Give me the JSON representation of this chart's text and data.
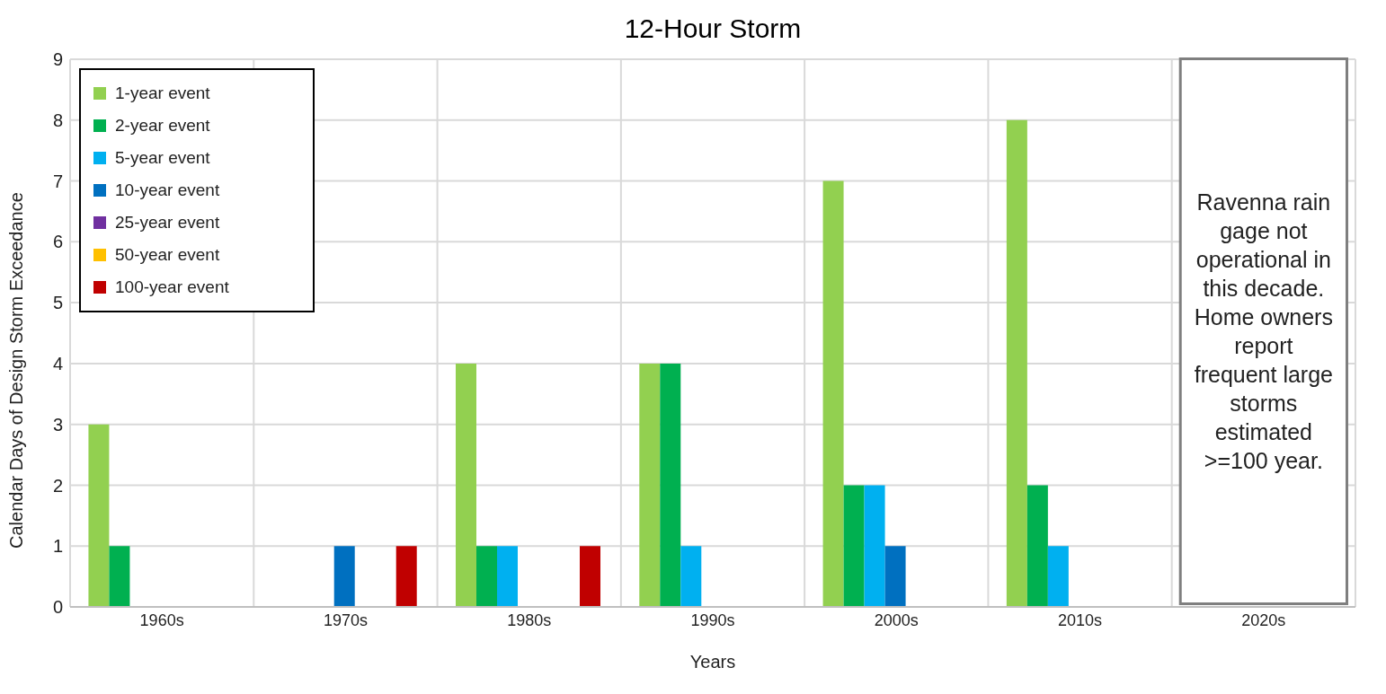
{
  "chart_data": {
    "type": "bar",
    "title": "12-Hour Storm",
    "xlabel": "Years",
    "ylabel": "Calendar Days of Design Storm Exceedance",
    "categories": [
      "1960s",
      "1970s",
      "1980s",
      "1990s",
      "2000s",
      "2010s",
      "2020s"
    ],
    "series": [
      {
        "name": "1-year event",
        "color": "#92d050",
        "values": [
          3,
          0,
          4,
          4,
          7,
          8,
          null
        ]
      },
      {
        "name": "2-year event",
        "color": "#00b050",
        "values": [
          1,
          0,
          1,
          4,
          2,
          2,
          null
        ]
      },
      {
        "name": "5-year event",
        "color": "#00b0f0",
        "values": [
          0,
          0,
          1,
          1,
          2,
          1,
          null
        ]
      },
      {
        "name": "10-year event",
        "color": "#0070c0",
        "values": [
          0,
          1,
          0,
          0,
          1,
          0,
          null
        ]
      },
      {
        "name": "25-year event",
        "color": "#7030a0",
        "values": [
          0,
          0,
          0,
          0,
          0,
          0,
          null
        ]
      },
      {
        "name": "50-year event",
        "color": "#ffc000",
        "values": [
          0,
          0,
          0,
          0,
          0,
          0,
          null
        ]
      },
      {
        "name": "100-year event",
        "color": "#c00000",
        "values": [
          0,
          1,
          1,
          0,
          0,
          0,
          null
        ]
      }
    ],
    "ylim": [
      0,
      9
    ],
    "yticks": [
      0,
      1,
      2,
      3,
      4,
      5,
      6,
      7,
      8,
      9
    ],
    "grid": true,
    "legend": "top left",
    "annotations": [
      "Ravenna rain gage not operational in this decade. Home owners report frequent large storms estimated >=100 year."
    ]
  }
}
